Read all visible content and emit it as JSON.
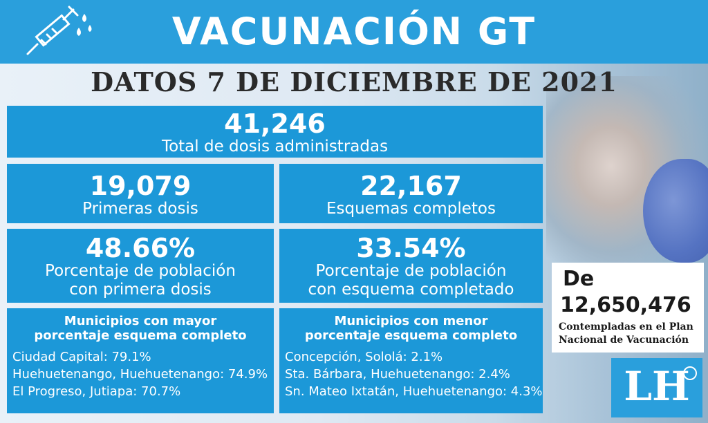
{
  "header": {
    "title": "VACUNACIÓN GT",
    "icon": "syringe-icon"
  },
  "date_line": "DATOS 7  DE DICIEMBRE DE 2021",
  "total": {
    "value": "41,246",
    "label": "Total de dosis administradas"
  },
  "primeras": {
    "value": "19,079",
    "label": "Primeras dosis"
  },
  "esquemas": {
    "value": "22,167",
    "label": "Esquemas completos"
  },
  "pct_primera": {
    "value": "48.66%",
    "label1": "Porcentaje de población",
    "label2": "con primera dosis"
  },
  "pct_esquema": {
    "value": "33.54%",
    "label1": "Porcentaje de población",
    "label2": "con esquema completado"
  },
  "mayor": {
    "title1": "Municipios con mayor",
    "title2": "porcentaje esquema completo",
    "items": [
      "Ciudad Capital: 79.1%",
      "Huehuetenango, Huehuetenango: 74.9%",
      "El Progreso, Jutiapa: 70.7%"
    ]
  },
  "menor": {
    "title1": "Municipios con menor",
    "title2": "porcentaje esquema completo",
    "items": [
      "Concepción, Sololá: 2.1%",
      "Sta. Bárbara, Huehuetenango: 2.4%",
      "Sn. Mateo Ixtatán, Huehuetenango: 4.3%"
    ]
  },
  "plan": {
    "prefix": "De",
    "value": "12,650,476",
    "text1": "Contempladas en el Plan",
    "text2": "Nacional de Vacunación"
  },
  "logo": {
    "text": "LH"
  },
  "colors": {
    "header": "#2a9fdc",
    "card": "#1c98d8",
    "text_dark": "#2a2a2a"
  }
}
